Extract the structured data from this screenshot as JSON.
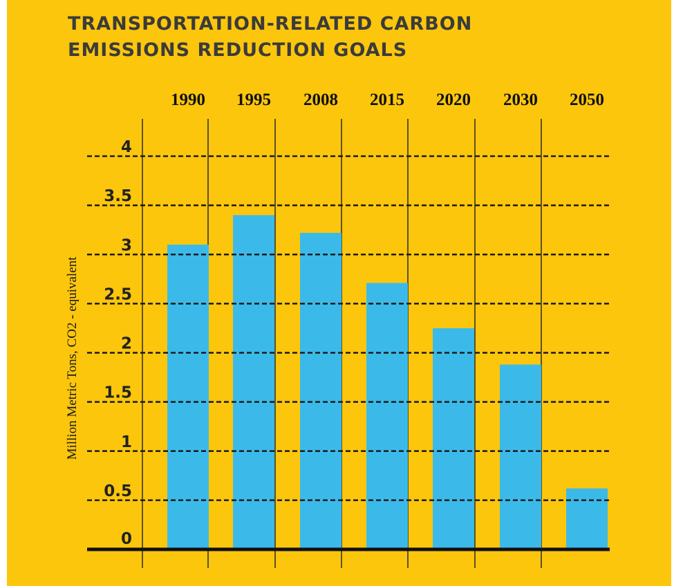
{
  "chart_data": {
    "type": "bar",
    "title": "TRANSPORTATION-RELATED CARBON\nEMISSIONS REDUCTION GOALS",
    "ylabel": "Million Metric Tons, CO2 - equivalent",
    "categories": [
      "1990",
      "1995",
      "2008",
      "2015",
      "2020",
      "2030",
      "2050"
    ],
    "values": [
      3.1,
      3.4,
      3.22,
      2.71,
      2.25,
      1.88,
      0.62
    ],
    "ylim": [
      0,
      4
    ],
    "yticks": [
      "0",
      "0.5",
      "1",
      "1.5",
      "2",
      "2.5",
      "3",
      "3.5",
      "4"
    ],
    "grid": true,
    "bar_color": "#3bbaea",
    "background_color": "#fcc60c"
  }
}
